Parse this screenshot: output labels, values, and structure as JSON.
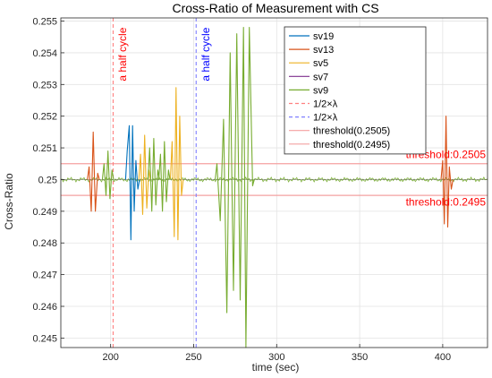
{
  "chart_data": {
    "type": "line",
    "title": "Cross-Ratio of Measurement with CS",
    "xlabel": "time (sec)",
    "ylabel": "Cross-Ratio",
    "xlim": [
      170,
      427
    ],
    "ylim": [
      0.2447,
      0.2551
    ],
    "x_ticks": [
      200,
      250,
      300,
      350,
      400
    ],
    "y_ticks": [
      0.245,
      0.246,
      0.247,
      0.248,
      0.249,
      0.25,
      0.251,
      0.252,
      0.253,
      0.254,
      0.255
    ],
    "y_tick_labels": [
      "0.245",
      "0.246",
      "0.247",
      "0.248",
      "0.249",
      "0.25",
      "0.251",
      "0.252",
      "0.253",
      "0.254",
      "0.255"
    ],
    "grid": true,
    "legend_position": "top-right",
    "baseline": 0.25,
    "series": [
      {
        "name": "sv19",
        "color": "#0072BD",
        "style": "solid",
        "bursts": [
          {
            "x": [
              210,
              211.2,
              212.2,
              213.2,
              214.2,
              215.2,
              216.4
            ],
            "y": [
              0.2509,
              0.2517,
              0.2481,
              0.2517,
              0.249,
              0.2506,
              0.2497
            ]
          }
        ]
      },
      {
        "name": "sv13",
        "color": "#D95319",
        "style": "solid",
        "bursts": [
          {
            "x": [
              187,
              188.3,
              189.5,
              190.8,
              192.2
            ],
            "y": [
              0.2504,
              0.249,
              0.2515,
              0.249,
              0.2502
            ]
          },
          {
            "x": [
              400,
              401,
              402,
              403,
              404,
              405.2
            ],
            "y": [
              0.2506,
              0.2486,
              0.252,
              0.2485,
              0.2504,
              0.2497
            ]
          }
        ]
      },
      {
        "name": "sv5",
        "color": "#EDB120",
        "style": "solid",
        "bursts": [
          {
            "x": [
              218,
              219.3,
              220.5,
              221.8,
              223
            ],
            "y": [
              0.2508,
              0.2489,
              0.2514,
              0.2491,
              0.2503
            ]
          },
          {
            "x": [
              237,
              238.3,
              239.4,
              240.5,
              241.6,
              242.7
            ],
            "y": [
              0.2512,
              0.2482,
              0.2529,
              0.2481,
              0.252,
              0.2495
            ]
          }
        ]
      },
      {
        "name": "sv7",
        "color": "#7E2F8E",
        "style": "solid",
        "bursts": []
      },
      {
        "name": "sv9",
        "color": "#77AC30",
        "style": "solid",
        "bursts": [
          {
            "x": [
              196,
              197.2,
              198.4,
              199.6,
              200.8
            ],
            "y": [
              0.2505,
              0.2495,
              0.2509,
              0.2494,
              0.2503
            ]
          },
          {
            "x": [
              223.5,
              224.8,
              226,
              227.2,
              228.4
            ],
            "y": [
              0.251,
              0.249,
              0.2513,
              0.2492,
              0.2503
            ]
          },
          {
            "x": [
              230,
              231.2,
              232.4,
              233.6,
              234.8
            ],
            "y": [
              0.2508,
              0.249,
              0.2512,
              0.2493,
              0.2503
            ]
          },
          {
            "x": [
              264,
              266,
              268,
              270,
              272
            ],
            "y": [
              0.2505,
              0.2487,
              0.2519,
              0.2458,
              0.254
            ]
          },
          {
            "x": [
              274,
              276,
              278,
              280,
              281.5,
              283.5,
              285.5
            ],
            "y": [
              0.2465,
              0.2546,
              0.2462,
              0.2548,
              0.2447,
              0.2548,
              0.2498
            ]
          }
        ]
      },
      {
        "name": "1/2×λ",
        "color": "#ff8080",
        "style": "dashed",
        "x": 201.5
      },
      {
        "name": "1/2×λ",
        "color": "#8080ff",
        "style": "dashed",
        "x": 251.5
      },
      {
        "name": "threshold(0.2505)",
        "color": "#f4a0a0",
        "style": "solid",
        "y": 0.2505
      },
      {
        "name": "threshold(0.2495)",
        "color": "#f4a0a0",
        "style": "solid",
        "y": 0.2495
      }
    ],
    "annotations": [
      {
        "text": "a half cycle",
        "x": 205,
        "y": 0.2548,
        "color": "#ff0000",
        "rotated": true
      },
      {
        "text": "a half cycle",
        "x": 255,
        "y": 0.2548,
        "color": "#0000ff",
        "rotated": true
      },
      {
        "text": "threshold:0.2505",
        "x": 427,
        "y": 0.25068,
        "color": "#ff0000",
        "anchor": "end"
      },
      {
        "text": "threshold:0.2495",
        "x": 427,
        "y": 0.24918,
        "color": "#ff0000",
        "anchor": "end"
      }
    ]
  }
}
